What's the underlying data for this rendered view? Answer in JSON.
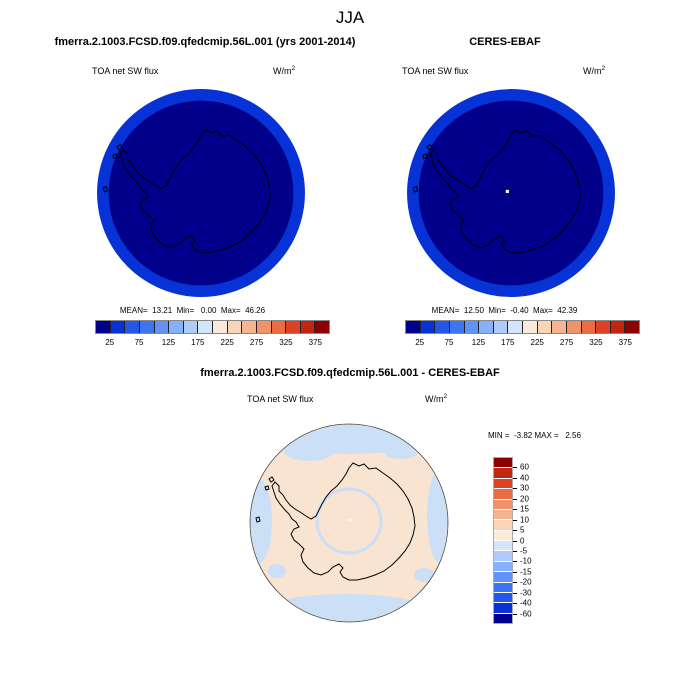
{
  "figure_title": "JJA",
  "model_panel": {
    "title": "fmerra.2.1003.FCSD.f09.qfedcmip.56L.001 (yrs 2001-2014)",
    "field_label": "TOA net SW flux",
    "units_base": "W/m",
    "units_exponent": "2",
    "stats_line": "MEAN=  13.21  Min=   0.00  Max=  46.26"
  },
  "obs_panel": {
    "title": "CERES-EBAF",
    "field_label": "TOA net SW flux",
    "units_base": "W/m",
    "units_exponent": "2",
    "stats_line": "MEAN=  12.50  Min=  -0.40  Max=  42.39"
  },
  "diff_panel": {
    "title": "fmerra.2.1003.FCSD.f09.qfedcmip.56L.001 - CERES-EBAF",
    "field_label": "TOA net SW flux",
    "units_base": "W/m",
    "units_exponent": "2",
    "minmax_line": "MIN =  -3.82 MAX =   2.56"
  },
  "flux_colorbar": {
    "colors": [
      "#00008B",
      "#0733D6",
      "#2456EA",
      "#3F74F0",
      "#6093F5",
      "#86B0F8",
      "#AECBFA",
      "#D4E4FB",
      "#FBE9DA",
      "#F9D4B7",
      "#F5B591",
      "#F0936A",
      "#E96C45",
      "#DE4126",
      "#C22612",
      "#8B0000"
    ],
    "tick_labels": [
      "25",
      "75",
      "125",
      "175",
      "225",
      "275",
      "325",
      "375"
    ]
  },
  "diff_colorbar": {
    "colors": [
      "#8B0000",
      "#C22612",
      "#DE4126",
      "#E96C45",
      "#F0936A",
      "#F5B591",
      "#F9D4B7",
      "#FBE9DA",
      "#D4E4FB",
      "#AECBFA",
      "#86B0F8",
      "#6093F5",
      "#3F74F0",
      "#2456EA",
      "#0733D6",
      "#00008B"
    ],
    "labels": [
      "60",
      "40",
      "30",
      "20",
      "15",
      "10",
      "5",
      "0",
      "-5",
      "-10",
      "-15",
      "-20",
      "-30",
      "-40",
      "-60"
    ]
  },
  "map_colors": {
    "flux_fill": "#00008B",
    "flux_outer_ring": "#0733D6",
    "diff_fill_positive": "#F9E4D2",
    "diff_fill_negative": "#CBDFF6",
    "diff_latitude_ring": "#C9DFF7",
    "coastline": "#000000",
    "map_outline": "#444444",
    "missing_data": "#FFFFFF"
  },
  "chart_data": [
    {
      "type": "heatmap",
      "subtype": "polar-stereographic-map",
      "region": "Antarctica (South Pole view)",
      "season": "JJA",
      "title": "fmerra.2.1003.FCSD.f09.qfedcmip.56L.001 (yrs 2001-2014)",
      "variable": "TOA net SW flux",
      "units": "W/m^2",
      "stats": {
        "mean": 13.21,
        "min": 0.0,
        "max": 46.26
      },
      "levels": [
        25,
        50,
        75,
        100,
        125,
        150,
        175,
        200,
        225,
        250,
        275,
        300,
        325,
        350,
        375
      ],
      "labeled_levels": [
        25,
        75,
        125,
        175,
        225,
        275,
        325,
        375
      ],
      "palette_direction": "blue (low) to red (high), 16 bins",
      "notes": "All values fall in the lowest bins: interior 0-25 W/m^2 (dark navy), outer annulus 25-50 W/m^2 (brighter blue); black Antarctic coastline overlay"
    },
    {
      "type": "heatmap",
      "subtype": "polar-stereographic-map",
      "region": "Antarctica (South Pole view)",
      "season": "JJA",
      "title": "CERES-EBAF",
      "variable": "TOA net SW flux",
      "units": "W/m^2",
      "stats": {
        "mean": 12.5,
        "min": -0.4,
        "max": 42.39
      },
      "levels": [
        25,
        50,
        75,
        100,
        125,
        150,
        175,
        200,
        225,
        250,
        275,
        300,
        325,
        350,
        375
      ],
      "labeled_levels": [
        25,
        75,
        125,
        175,
        225,
        275,
        325,
        375
      ],
      "palette_direction": "blue (low) to red (high), 16 bins",
      "notes": "Same pattern as model panel; small white missing-data cell near the pole"
    },
    {
      "type": "heatmap",
      "subtype": "polar-stereographic-difference-map",
      "region": "Antarctica (South Pole view)",
      "season": "JJA",
      "title": "fmerra.2.1003.FCSD.f09.qfedcmip.56L.001 - CERES-EBAF",
      "variable": "TOA net SW flux",
      "units": "W/m^2",
      "stats": {
        "min": -3.82,
        "max": 2.56
      },
      "levels": [
        -60,
        -40,
        -30,
        -20,
        -15,
        -10,
        -5,
        0,
        5,
        10,
        15,
        20,
        30,
        40,
        60
      ],
      "palette_direction": "red (positive) at top to blue (negative) at bottom on vertical colorbar, 16 bins",
      "notes": "Map mostly in 0 to +5 bin (pale peach) with -5 to 0 bin (pale blue) patches along the map rim and a pale blue latitude circle near 80S; white dot at pole"
    }
  ]
}
